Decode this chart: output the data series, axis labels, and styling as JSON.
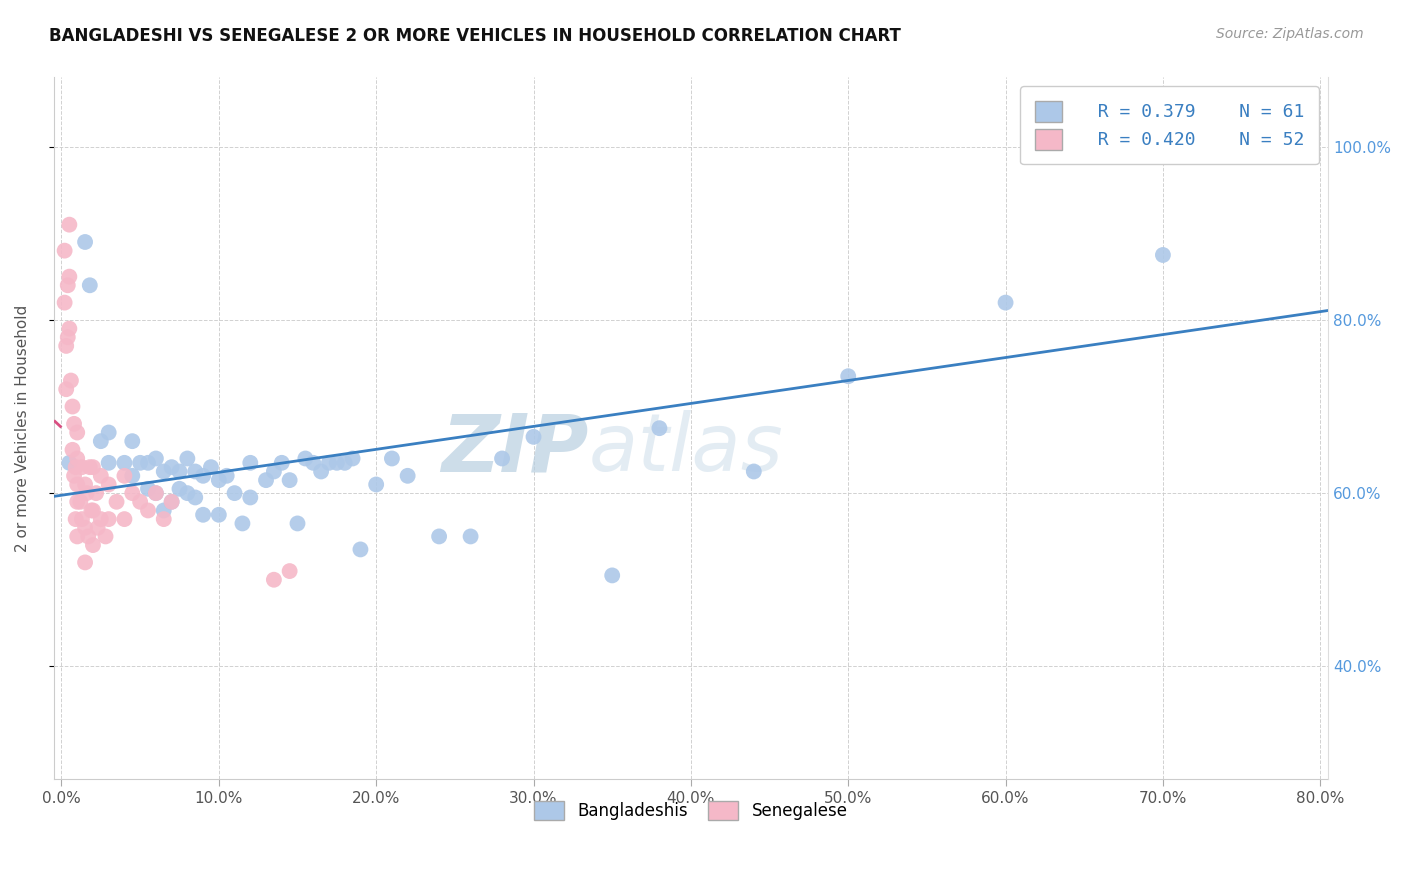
{
  "title": "BANGLADESHI VS SENEGALESE 2 OR MORE VEHICLES IN HOUSEHOLD CORRELATION CHART",
  "source": "Source: ZipAtlas.com",
  "ylabel": "2 or more Vehicles in Household",
  "xlim": [
    -0.005,
    0.805
  ],
  "ylim": [
    0.27,
    1.08
  ],
  "xtick_positions": [
    0.0,
    0.1,
    0.2,
    0.3,
    0.4,
    0.5,
    0.6,
    0.7,
    0.8
  ],
  "xtick_labels": [
    "0.0%",
    "10.0%",
    "20.0%",
    "30.0%",
    "40.0%",
    "50.0%",
    "60.0%",
    "70.0%",
    "80.0%"
  ],
  "ytick_positions": [
    0.4,
    0.6,
    0.8,
    1.0
  ],
  "ytick_labels": [
    "40.0%",
    "60.0%",
    "80.0%",
    "100.0%"
  ],
  "legend_bottom_labels": [
    "Bangladeshis",
    "Senegalese"
  ],
  "blue_R": "R = 0.379",
  "blue_N": "N = 61",
  "pink_R": "R = 0.420",
  "pink_N": "N = 52",
  "blue_color": "#adc8e8",
  "pink_color": "#f5b8c8",
  "blue_line_color": "#3a7fc1",
  "pink_line_color": "#d94f82",
  "right_tick_color": "#5599dd",
  "watermark_zip": "ZIP",
  "watermark_atlas": "atlas",
  "blue_scatter_x": [
    0.005,
    0.015,
    0.018,
    0.025,
    0.03,
    0.03,
    0.04,
    0.045,
    0.045,
    0.05,
    0.055,
    0.055,
    0.06,
    0.06,
    0.065,
    0.065,
    0.07,
    0.07,
    0.075,
    0.075,
    0.08,
    0.08,
    0.085,
    0.085,
    0.09,
    0.09,
    0.095,
    0.1,
    0.1,
    0.105,
    0.11,
    0.115,
    0.12,
    0.12,
    0.13,
    0.135,
    0.14,
    0.145,
    0.15,
    0.155,
    0.16,
    0.165,
    0.17,
    0.175,
    0.18,
    0.185,
    0.19,
    0.2,
    0.21,
    0.22,
    0.24,
    0.26,
    0.28,
    0.3,
    0.35,
    0.38,
    0.44,
    0.5,
    0.6,
    0.7,
    0.72
  ],
  "blue_scatter_y": [
    0.635,
    0.89,
    0.84,
    0.66,
    0.635,
    0.67,
    0.635,
    0.62,
    0.66,
    0.635,
    0.605,
    0.635,
    0.6,
    0.64,
    0.58,
    0.625,
    0.59,
    0.63,
    0.605,
    0.625,
    0.6,
    0.64,
    0.595,
    0.625,
    0.575,
    0.62,
    0.63,
    0.575,
    0.615,
    0.62,
    0.6,
    0.565,
    0.595,
    0.635,
    0.615,
    0.625,
    0.635,
    0.615,
    0.565,
    0.64,
    0.635,
    0.625,
    0.635,
    0.635,
    0.635,
    0.64,
    0.535,
    0.61,
    0.64,
    0.62,
    0.55,
    0.55,
    0.64,
    0.665,
    0.505,
    0.675,
    0.625,
    0.735,
    0.82,
    0.875,
    1.0
  ],
  "pink_scatter_x": [
    0.002,
    0.002,
    0.003,
    0.003,
    0.004,
    0.004,
    0.005,
    0.005,
    0.005,
    0.006,
    0.007,
    0.007,
    0.008,
    0.008,
    0.009,
    0.009,
    0.01,
    0.01,
    0.01,
    0.01,
    0.01,
    0.012,
    0.013,
    0.013,
    0.015,
    0.015,
    0.015,
    0.016,
    0.017,
    0.018,
    0.019,
    0.02,
    0.02,
    0.02,
    0.022,
    0.023,
    0.025,
    0.025,
    0.028,
    0.03,
    0.03,
    0.035,
    0.04,
    0.04,
    0.045,
    0.05,
    0.055,
    0.06,
    0.065,
    0.07,
    0.135,
    0.145
  ],
  "pink_scatter_y": [
    0.88,
    0.82,
    0.77,
    0.72,
    0.84,
    0.78,
    0.91,
    0.85,
    0.79,
    0.73,
    0.65,
    0.7,
    0.62,
    0.68,
    0.57,
    0.63,
    0.64,
    0.59,
    0.55,
    0.61,
    0.67,
    0.59,
    0.63,
    0.57,
    0.61,
    0.56,
    0.52,
    0.6,
    0.55,
    0.63,
    0.58,
    0.63,
    0.58,
    0.54,
    0.6,
    0.56,
    0.62,
    0.57,
    0.55,
    0.61,
    0.57,
    0.59,
    0.62,
    0.57,
    0.6,
    0.59,
    0.58,
    0.6,
    0.57,
    0.59,
    0.5,
    0.51
  ]
}
